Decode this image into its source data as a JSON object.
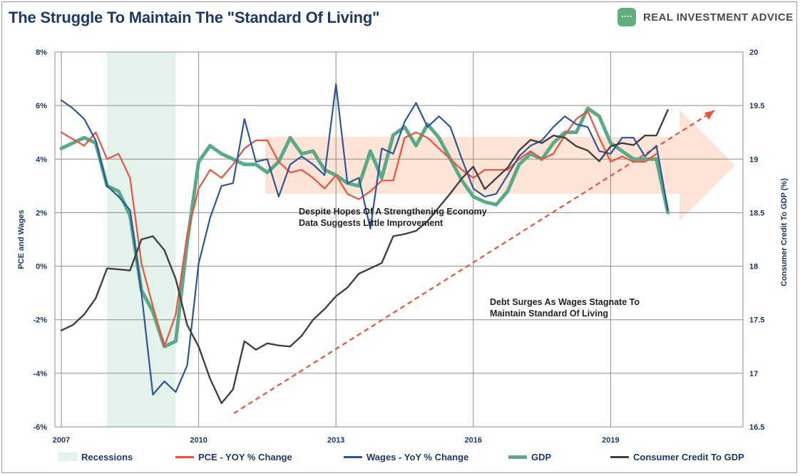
{
  "header": {
    "title": "The Struggle To Maintain The \"Standard Of Living\"",
    "brand": "REAL INVESTMENT ADVICE"
  },
  "colors": {
    "pce": "#e8533f",
    "wages": "#2e5597",
    "gdp": "#5aaa88",
    "credit": "#404040",
    "recession": "#e3f3ec",
    "arrow": "#fde3d4",
    "trend": "#e8533f",
    "axis_text": "#1f3864"
  },
  "chart_data": {
    "type": "line",
    "x_ticks": [
      "2007",
      "2010",
      "2013",
      "2016",
      "2019"
    ],
    "x_tick_values": [
      2007,
      2010,
      2013,
      2016,
      2019
    ],
    "xlim": [
      2007,
      2022.25
    ],
    "ylabel_left": "PCE and Wages",
    "ylabel_right": "Consumer Credit To GDP (%)",
    "ylim_left": [
      -6,
      8
    ],
    "ylim_right": [
      16.5,
      20
    ],
    "y_ticks_left": [
      "-6%",
      "-4%",
      "-2%",
      "0%",
      "2%",
      "4%",
      "6%",
      "8%"
    ],
    "y_ticks_right": [
      "16.5",
      "17",
      "17.5",
      "18",
      "18.5",
      "19",
      "19.5",
      "20"
    ],
    "grid": true,
    "recession": {
      "label": "Recessions",
      "start": 2008.0,
      "end": 2009.5
    },
    "annotations": [
      {
        "lines": [
          "Despite Hopes Of A Strengthening Economy",
          "Data Suggests Little Improvement"
        ]
      },
      {
        "lines": [
          "Debt Surges As Wages Stagnate To",
          "Maintain Standard Of Living"
        ]
      }
    ],
    "series": [
      {
        "name": "PCE - YOY % Change",
        "axis": "left",
        "points": [
          [
            2007.0,
            5.0
          ],
          [
            2007.25,
            4.75
          ],
          [
            2007.5,
            4.5
          ],
          [
            2007.75,
            5.0
          ],
          [
            2008.0,
            4.0
          ],
          [
            2008.25,
            4.2
          ],
          [
            2008.5,
            3.3
          ],
          [
            2008.75,
            0.1
          ],
          [
            2009.0,
            -1.5
          ],
          [
            2009.25,
            -3.0
          ],
          [
            2009.5,
            -1.8
          ],
          [
            2009.75,
            1.2
          ],
          [
            2010.0,
            2.9
          ],
          [
            2010.25,
            3.6
          ],
          [
            2010.5,
            3.3
          ],
          [
            2010.75,
            3.8
          ],
          [
            2011.0,
            4.4
          ],
          [
            2011.25,
            4.7
          ],
          [
            2011.5,
            4.7
          ],
          [
            2011.75,
            3.9
          ],
          [
            2012.0,
            3.5
          ],
          [
            2012.25,
            3.6
          ],
          [
            2012.5,
            3.3
          ],
          [
            2012.75,
            2.9
          ],
          [
            2013.0,
            3.4
          ],
          [
            2013.25,
            2.7
          ],
          [
            2013.5,
            2.5
          ],
          [
            2013.75,
            2.8
          ],
          [
            2014.0,
            3.2
          ],
          [
            2014.25,
            3.2
          ],
          [
            2014.5,
            4.8
          ],
          [
            2014.75,
            5.0
          ],
          [
            2015.0,
            4.8
          ],
          [
            2015.25,
            4.4
          ],
          [
            2015.5,
            4.0
          ],
          [
            2015.75,
            3.6
          ],
          [
            2016.0,
            3.3
          ],
          [
            2016.25,
            3.6
          ],
          [
            2016.5,
            3.6
          ],
          [
            2016.75,
            3.6
          ],
          [
            2017.0,
            4.0
          ],
          [
            2017.25,
            4.3
          ],
          [
            2017.5,
            4.0
          ],
          [
            2017.75,
            4.2
          ],
          [
            2018.0,
            4.9
          ],
          [
            2018.25,
            5.5
          ],
          [
            2018.5,
            5.8
          ],
          [
            2018.75,
            4.8
          ],
          [
            2019.0,
            3.9
          ],
          [
            2019.25,
            4.1
          ],
          [
            2019.5,
            3.9
          ],
          [
            2019.75,
            3.9
          ],
          [
            2020.0,
            4.2
          ]
        ]
      },
      {
        "name": "Wages - YoY % Change",
        "axis": "left",
        "points": [
          [
            2007.0,
            6.2
          ],
          [
            2007.25,
            5.9
          ],
          [
            2007.5,
            5.5
          ],
          [
            2007.75,
            4.7
          ],
          [
            2008.0,
            3.0
          ],
          [
            2008.25,
            2.6
          ],
          [
            2008.5,
            2.1
          ],
          [
            2008.75,
            -1.0
          ],
          [
            2009.0,
            -4.8
          ],
          [
            2009.25,
            -4.3
          ],
          [
            2009.5,
            -4.7
          ],
          [
            2009.75,
            -3.7
          ],
          [
            2010.0,
            0.1
          ],
          [
            2010.25,
            1.8
          ],
          [
            2010.5,
            3.0
          ],
          [
            2010.75,
            3.1
          ],
          [
            2011.0,
            5.5
          ],
          [
            2011.25,
            3.9
          ],
          [
            2011.5,
            4.0
          ],
          [
            2011.75,
            2.6
          ],
          [
            2012.0,
            3.8
          ],
          [
            2012.25,
            4.1
          ],
          [
            2012.5,
            3.8
          ],
          [
            2012.75,
            3.4
          ],
          [
            2013.0,
            6.8
          ],
          [
            2013.25,
            3.1
          ],
          [
            2013.5,
            3.3
          ],
          [
            2013.75,
            1.4
          ],
          [
            2014.0,
            4.4
          ],
          [
            2014.25,
            4.2
          ],
          [
            2014.5,
            5.4
          ],
          [
            2014.75,
            6.1
          ],
          [
            2015.0,
            5.2
          ],
          [
            2015.25,
            5.6
          ],
          [
            2015.5,
            5.2
          ],
          [
            2015.75,
            4.0
          ],
          [
            2016.0,
            2.9
          ],
          [
            2016.25,
            2.6
          ],
          [
            2016.5,
            2.7
          ],
          [
            2016.75,
            3.4
          ],
          [
            2017.0,
            4.1
          ],
          [
            2017.25,
            4.5
          ],
          [
            2017.5,
            4.7
          ],
          [
            2017.75,
            5.2
          ],
          [
            2018.0,
            5.6
          ],
          [
            2018.25,
            5.3
          ],
          [
            2018.5,
            5.2
          ],
          [
            2018.75,
            4.3
          ],
          [
            2019.0,
            4.2
          ],
          [
            2019.25,
            4.8
          ],
          [
            2019.5,
            4.8
          ],
          [
            2019.75,
            4.1
          ],
          [
            2020.0,
            4.5
          ],
          [
            2020.25,
            2.1
          ]
        ]
      },
      {
        "name": "GDP",
        "axis": "left",
        "points": [
          [
            2007.0,
            4.4
          ],
          [
            2007.25,
            4.6
          ],
          [
            2007.5,
            4.8
          ],
          [
            2007.75,
            4.6
          ],
          [
            2008.0,
            3.0
          ],
          [
            2008.25,
            2.8
          ],
          [
            2008.5,
            1.9
          ],
          [
            2008.75,
            -0.9
          ],
          [
            2009.0,
            -1.7
          ],
          [
            2009.25,
            -3.0
          ],
          [
            2009.5,
            -2.8
          ],
          [
            2009.75,
            0.9
          ],
          [
            2010.0,
            3.9
          ],
          [
            2010.25,
            4.5
          ],
          [
            2010.5,
            4.2
          ],
          [
            2010.75,
            4.0
          ],
          [
            2011.0,
            3.8
          ],
          [
            2011.25,
            3.8
          ],
          [
            2011.5,
            3.5
          ],
          [
            2011.75,
            3.9
          ],
          [
            2012.0,
            4.8
          ],
          [
            2012.25,
            4.2
          ],
          [
            2012.5,
            4.3
          ],
          [
            2012.75,
            3.6
          ],
          [
            2013.0,
            3.4
          ],
          [
            2013.25,
            3.1
          ],
          [
            2013.5,
            3.0
          ],
          [
            2013.75,
            4.3
          ],
          [
            2014.0,
            3.3
          ],
          [
            2014.25,
            4.9
          ],
          [
            2014.5,
            5.2
          ],
          [
            2014.75,
            4.5
          ],
          [
            2015.0,
            5.3
          ],
          [
            2015.25,
            4.8
          ],
          [
            2015.5,
            4.0
          ],
          [
            2015.75,
            3.2
          ],
          [
            2016.0,
            2.6
          ],
          [
            2016.25,
            2.4
          ],
          [
            2016.5,
            2.3
          ],
          [
            2016.75,
            2.8
          ],
          [
            2017.0,
            3.8
          ],
          [
            2017.25,
            4.2
          ],
          [
            2017.5,
            4.0
          ],
          [
            2017.75,
            4.6
          ],
          [
            2018.0,
            5.0
          ],
          [
            2018.25,
            5.0
          ],
          [
            2018.5,
            5.9
          ],
          [
            2018.75,
            5.6
          ],
          [
            2019.0,
            4.6
          ],
          [
            2019.25,
            4.3
          ],
          [
            2019.5,
            4.0
          ],
          [
            2019.75,
            4.0
          ],
          [
            2020.0,
            4.0
          ],
          [
            2020.25,
            2.0
          ]
        ]
      },
      {
        "name": "Consumer Credit To GDP",
        "axis": "right",
        "points": [
          [
            2007.0,
            17.4
          ],
          [
            2007.25,
            17.45
          ],
          [
            2007.5,
            17.55
          ],
          [
            2007.75,
            17.7
          ],
          [
            2008.0,
            17.98
          ],
          [
            2008.25,
            17.97
          ],
          [
            2008.5,
            17.96
          ],
          [
            2008.75,
            18.25
          ],
          [
            2009.0,
            18.28
          ],
          [
            2009.25,
            18.15
          ],
          [
            2009.5,
            17.88
          ],
          [
            2009.75,
            17.45
          ],
          [
            2010.0,
            17.25
          ],
          [
            2010.25,
            16.95
          ],
          [
            2010.5,
            16.72
          ],
          [
            2010.75,
            16.85
          ],
          [
            2011.0,
            17.3
          ],
          [
            2011.25,
            17.22
          ],
          [
            2011.5,
            17.28
          ],
          [
            2011.75,
            17.26
          ],
          [
            2012.0,
            17.25
          ],
          [
            2012.25,
            17.35
          ],
          [
            2012.5,
            17.5
          ],
          [
            2012.75,
            17.6
          ],
          [
            2013.0,
            17.72
          ],
          [
            2013.25,
            17.8
          ],
          [
            2013.5,
            17.93
          ],
          [
            2013.75,
            17.98
          ],
          [
            2014.0,
            18.03
          ],
          [
            2014.25,
            18.28
          ],
          [
            2014.5,
            18.3
          ],
          [
            2014.75,
            18.33
          ],
          [
            2015.0,
            18.42
          ],
          [
            2015.25,
            18.55
          ],
          [
            2015.5,
            18.68
          ],
          [
            2015.75,
            18.82
          ],
          [
            2016.0,
            18.93
          ],
          [
            2016.25,
            18.72
          ],
          [
            2016.5,
            18.82
          ],
          [
            2016.75,
            18.92
          ],
          [
            2017.0,
            19.08
          ],
          [
            2017.25,
            19.18
          ],
          [
            2017.5,
            19.15
          ],
          [
            2017.75,
            19.22
          ],
          [
            2018.0,
            19.2
          ],
          [
            2018.25,
            19.12
          ],
          [
            2018.5,
            19.08
          ],
          [
            2018.75,
            18.98
          ],
          [
            2019.0,
            19.12
          ],
          [
            2019.25,
            19.15
          ],
          [
            2019.5,
            19.13
          ],
          [
            2019.75,
            19.22
          ],
          [
            2020.0,
            19.22
          ],
          [
            2020.25,
            19.46
          ]
        ]
      }
    ]
  },
  "legend": [
    {
      "label": "Recessions",
      "kind": "band"
    },
    {
      "label": "PCE - YOY % Change",
      "kind": "pce"
    },
    {
      "label": "Wages - YoY % Change",
      "kind": "wages"
    },
    {
      "label": "GDP",
      "kind": "gdp"
    },
    {
      "label": "Consumer Credit To GDP",
      "kind": "credit"
    }
  ]
}
